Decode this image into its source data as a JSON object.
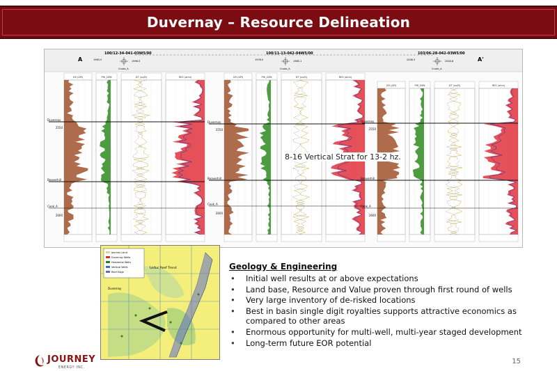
{
  "slide": {
    "title": "Duvernay – Resource Delineation",
    "page_number": "15"
  },
  "cross_section": {
    "section_start_label": "A",
    "section_end_label": "A'",
    "wells": [
      {
        "uwi": "100/12-34-041-03W5/00",
        "header_value_1": "1963.5",
        "header_value_2": "1996.5",
        "name_label": "Crude_A"
      },
      {
        "uwi": "100/11-13-042-04W5/00",
        "header_value_1": "1978.0",
        "header_value_2": "1985.1",
        "name_label": "Crude_A"
      },
      {
        "uwi": "103/06-28-042-03W5/00",
        "header_value_1": "2006.3",
        "header_value_2": "2004.8",
        "name_label": "Crude_A"
      }
    ],
    "tops": [
      "Duvernay",
      "Beaverhill",
      "Cook_A"
    ],
    "depth_ticks": {
      "well1": [
        "2550",
        "2600"
      ],
      "well2": [
        "2550",
        "2600"
      ],
      "well3": [
        "2550",
        "2600"
      ]
    },
    "curve_names": [
      "GR (API)",
      "PHI_DEN",
      "DT (us/ft)",
      "RES (ohm)"
    ],
    "annotation": "8-16 Vertical Strat for 13-2 hz.",
    "colors": {
      "gamma_fill": "#a0522d",
      "porosity_fill": "#2e8b1f",
      "resistivity_fill": "#e0313c"
    }
  },
  "map": {
    "title": "Leduc Reef Trend",
    "legend_items": [
      "Journey Land",
      "Duvernay Wells",
      "Horizontal Wells",
      "Vertical Wells",
      "Reef Edge"
    ],
    "label": "Duvernay"
  },
  "geology": {
    "heading": "Geology & Engineering",
    "bullets": [
      {
        "text": "Initial well results at or above expectations"
      },
      {
        "text": "Land base, Resource and Value proven through first round of wells"
      },
      {
        "text": "Very large inventory of de-risked locations"
      },
      {
        "text": "Best in basin single digit royalties supports attractive economics as compared to other areas"
      },
      {
        "text": "Enormous opportunity for multi-well, multi-year staged development"
      },
      {
        "text": "Long-term future EOR potential"
      }
    ]
  },
  "logo": {
    "word": "JOURNEY",
    "sub": "ENERGY INC."
  }
}
